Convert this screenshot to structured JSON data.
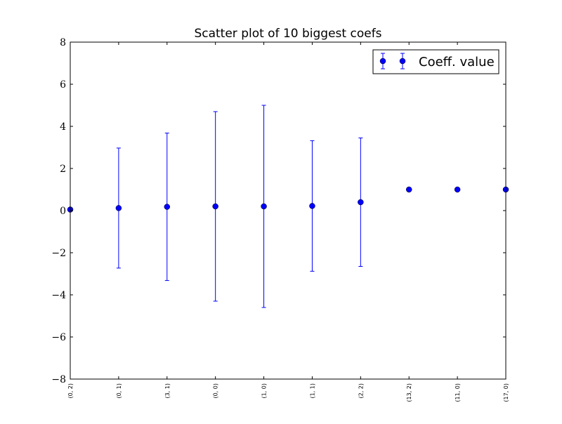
{
  "chart_data": {
    "type": "scatter",
    "title": "Scatter plot of 10 biggest coefs",
    "xlabel": "",
    "ylabel": "",
    "categories": [
      "(0, 2)",
      "(0, 1)",
      "(3, 1)",
      "(0, 0)",
      "(1, 0)",
      "(1, 1)",
      "(2, 2)",
      "(13, 2)",
      "(11, 0)",
      "(17, 0)"
    ],
    "ylim": [
      -8,
      8
    ],
    "yticks": [
      -8,
      -6,
      -4,
      -2,
      0,
      2,
      4,
      6,
      8
    ],
    "ytick_labels": [
      "−8",
      "−6",
      "−4",
      "−2",
      "0",
      "2",
      "4",
      "6",
      "8"
    ],
    "grid": false,
    "legend_position": "top-right",
    "series": [
      {
        "name": "Coeff. value",
        "color": "#0000ff",
        "values": [
          0.05,
          0.12,
          0.18,
          0.2,
          0.2,
          0.22,
          0.4,
          1.0,
          1.0,
          1.0
        ],
        "errors": [
          null,
          2.85,
          3.5,
          4.5,
          4.8,
          3.1,
          3.05,
          null,
          null,
          null
        ]
      }
    ]
  }
}
